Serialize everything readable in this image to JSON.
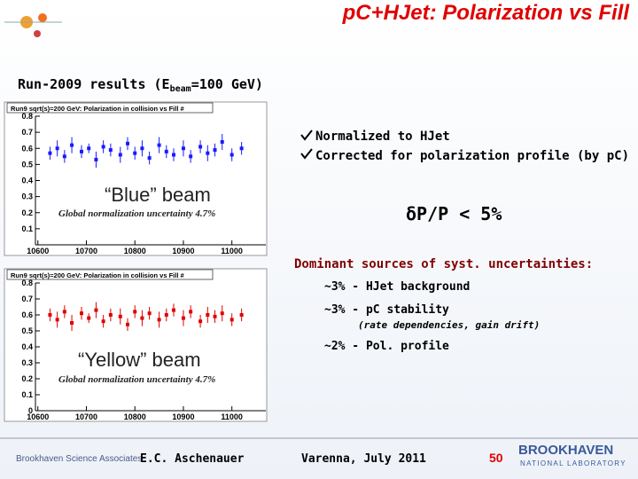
{
  "slide": {
    "title": "pC+HJet: Polarization vs Fill",
    "subtitle_parts": [
      "Run-2009 results (E",
      "beam",
      "=100 GeV)"
    ],
    "bullets": [
      "Normalized to HJet",
      "Corrected for polarization profile (by pC)"
    ],
    "blue_label": "“Blue” beam",
    "yellow_label": "“Yellow” beam",
    "precision": "δP/P < 5%",
    "sources_heading": "Dominant sources of syst. uncertainties:",
    "sources": [
      "~3% - HJet background",
      "~3% - pC stability",
      "(rate dependencies, gain drift)",
      "~2% - Pol. profile"
    ],
    "footer": {
      "org": "Brookhaven Science Associates",
      "author": "E.C. Aschenauer",
      "venue": "Varenna, July 2011",
      "page": "50",
      "logo_top": "BROOKHAVEN",
      "logo_bottom": "NATIONAL LABORATORY"
    }
  },
  "chart_data": [
    {
      "type": "scatter",
      "title": "Run9 sqrt(s)=200 GeV: Polarization in collision vs Fill #",
      "annotation": "Global normalization uncertainty 4.7%",
      "color": "#1a1aff",
      "x": [
        10625,
        10640,
        10655,
        10670,
        10690,
        10705,
        10720,
        10735,
        10750,
        10770,
        10785,
        10800,
        10815,
        10830,
        10850,
        10865,
        10880,
        10900,
        10915,
        10935,
        10950,
        10965,
        10980,
        11000,
        11020
      ],
      "values": [
        0.57,
        0.6,
        0.55,
        0.62,
        0.58,
        0.6,
        0.53,
        0.61,
        0.59,
        0.56,
        0.63,
        0.57,
        0.6,
        0.54,
        0.62,
        0.58,
        0.56,
        0.6,
        0.55,
        0.61,
        0.57,
        0.59,
        0.64,
        0.56,
        0.6
      ],
      "errors": [
        0.04,
        0.05,
        0.04,
        0.05,
        0.04,
        0.03,
        0.05,
        0.04,
        0.04,
        0.05,
        0.04,
        0.04,
        0.05,
        0.04,
        0.05,
        0.04,
        0.04,
        0.05,
        0.04,
        0.04,
        0.05,
        0.04,
        0.05,
        0.04,
        0.04
      ],
      "xlim": [
        10595,
        11070
      ],
      "ylim": [
        0,
        0.8
      ],
      "xticks": [
        10600,
        10700,
        10800,
        10900,
        11000
      ],
      "yticks": [
        0.1,
        0.2,
        0.3,
        0.4,
        0.5,
        0.6,
        0.7,
        0.8
      ]
    },
    {
      "type": "scatter",
      "title": "Run9 sqrt(s)=200 GeV: Polarization in collision vs Fill #",
      "annotation": "Global normalization uncertainty 4.7%",
      "color": "#e00000",
      "x": [
        10625,
        10640,
        10655,
        10670,
        10690,
        10705,
        10720,
        10735,
        10750,
        10770,
        10785,
        10800,
        10815,
        10830,
        10850,
        10865,
        10880,
        10900,
        10915,
        10935,
        10950,
        10965,
        10980,
        11000,
        11020
      ],
      "values": [
        0.6,
        0.57,
        0.62,
        0.55,
        0.61,
        0.58,
        0.63,
        0.56,
        0.6,
        0.59,
        0.54,
        0.62,
        0.58,
        0.61,
        0.57,
        0.6,
        0.63,
        0.58,
        0.62,
        0.56,
        0.6,
        0.59,
        0.61,
        0.57,
        0.6
      ],
      "errors": [
        0.04,
        0.05,
        0.04,
        0.05,
        0.04,
        0.03,
        0.05,
        0.04,
        0.04,
        0.05,
        0.04,
        0.04,
        0.05,
        0.04,
        0.05,
        0.04,
        0.04,
        0.05,
        0.04,
        0.04,
        0.05,
        0.04,
        0.05,
        0.04,
        0.04
      ],
      "xlim": [
        10595,
        11070
      ],
      "ylim": [
        0,
        0.8
      ],
      "xticks": [
        10600,
        10700,
        10800,
        10900,
        11000
      ],
      "yticks": [
        0,
        0.1,
        0.2,
        0.3,
        0.4,
        0.5,
        0.6,
        0.7,
        0.8
      ]
    }
  ]
}
